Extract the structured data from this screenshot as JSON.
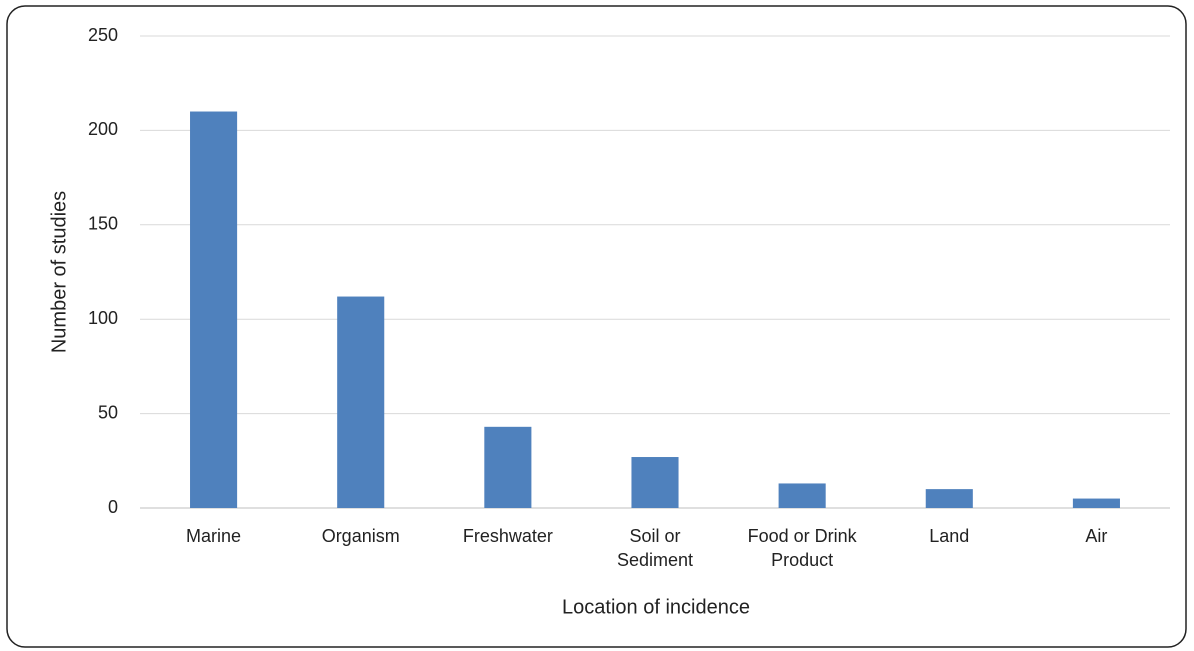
{
  "chart_data": {
    "type": "bar",
    "categories": [
      "Marine",
      "Organism",
      "Freshwater",
      "Soil or Sediment",
      "Food or Drink Product",
      "Land",
      "Air"
    ],
    "values": [
      210,
      112,
      43,
      27,
      13,
      10,
      5
    ],
    "color": "#4f81bd",
    "xlabel": "Location of incidence",
    "ylabel": "Number of studies",
    "ylim": [
      0,
      250
    ],
    "yticks": [
      0,
      50,
      100,
      150,
      200,
      250
    ],
    "grid": true
  }
}
